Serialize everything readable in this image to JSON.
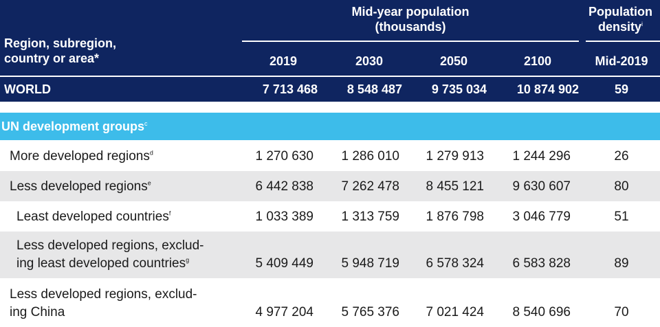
{
  "header": {
    "region_col": [
      "Region, subregion,",
      "country or area*"
    ],
    "midyear": [
      "Mid-year population",
      "(thousands)"
    ],
    "density": [
      "Population",
      "density"
    ],
    "density_sup": "i",
    "years": [
      "2019",
      "2030",
      "2050",
      "2100"
    ],
    "density_year": "Mid-2019"
  },
  "world": {
    "label": "WORLD",
    "values": [
      "7 713 468",
      "8 548 487",
      "9 735 034",
      "10 874 902"
    ],
    "density": "59"
  },
  "section": {
    "label": "UN development groups",
    "sup": "c"
  },
  "rows": [
    {
      "label": [
        "More developed regions"
      ],
      "sup": "d",
      "values": [
        "1 270 630",
        "1 286 010",
        "1 279 913",
        "1 244 296"
      ],
      "density": "26"
    },
    {
      "label": [
        "Less developed regions"
      ],
      "sup": "e",
      "values": [
        "6 442 838",
        "7 262 478",
        "8 455 121",
        "9 630 607"
      ],
      "density": "80"
    },
    {
      "label": [
        "Least developed countries"
      ],
      "sup": "f",
      "values": [
        "1 033 389",
        "1 313 759",
        "1 876 798",
        "3 046 779"
      ],
      "density": "51"
    },
    {
      "label": [
        "Less developed regions, exclud-",
        "ing least developed countries"
      ],
      "sup": "g",
      "values": [
        "5 409 449",
        "5 948 719",
        "6 578 324",
        "6 583 828"
      ],
      "density": "89"
    },
    {
      "label": [
        "Less developed regions, exclud-",
        "ing China"
      ],
      "sup": "",
      "values": [
        "4 977 204",
        "5 765 376",
        "7 021 424",
        "8 540 696"
      ],
      "density": "70"
    }
  ]
}
